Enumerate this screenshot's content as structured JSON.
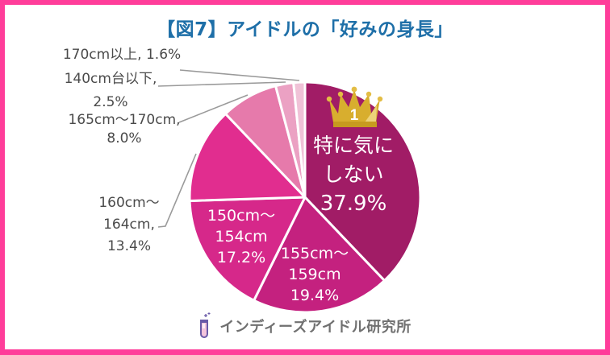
{
  "theme": {
    "frame": "#ff3d9a",
    "title": "#1e6fa8",
    "label_text": "#4a4a4a",
    "inside_label_text": "#ffffff",
    "leader_line": "#9a9a9a",
    "brand_text": "#707070",
    "crown_gold": "#d8ae2e"
  },
  "title": "【図7】アイドルの「好みの身長」",
  "badge": {
    "rank": "1",
    "icon": "crown-icon"
  },
  "footer": {
    "brand": "インディーズアイドル研究所",
    "icon": "test-tube-icon"
  },
  "chart_data": {
    "type": "pie",
    "title": "【図7】アイドルの「好みの身長」",
    "categories": [
      "特に気にしない",
      "155cm～159cm",
      "150cm～154cm",
      "160cm～164cm",
      "165cm～170cm",
      "140cm台以下",
      "170cm以上"
    ],
    "values": [
      37.9,
      19.4,
      17.2,
      13.4,
      8.0,
      2.5,
      1.6
    ],
    "unit": "%",
    "colors": [
      "#a11c66",
      "#c4217f",
      "#d6288a",
      "#e12d8f",
      "#e67aab",
      "#eba1c3",
      "#f0c2d7"
    ],
    "start_angle": "12 o'clock",
    "direction": "clockwise",
    "legend": "none (direct labels)",
    "labels": [
      {
        "lines": [
          "特に気に",
          "しない",
          "37.9%"
        ],
        "position": "inside"
      },
      {
        "lines": [
          "155cm～",
          "159cm",
          "19.4%"
        ],
        "position": "inside"
      },
      {
        "lines": [
          "150cm～",
          "154cm",
          "17.2%"
        ],
        "position": "inside"
      },
      {
        "lines": [
          "160cm～",
          "164cm,",
          "13.4%"
        ],
        "position": "outside"
      },
      {
        "lines": [
          "165cm～170cm,",
          "8.0%"
        ],
        "position": "outside"
      },
      {
        "lines": [
          "140cm台以下,",
          "2.5%"
        ],
        "position": "outside"
      },
      {
        "lines": [
          "170cm以上, 1.6%"
        ],
        "position": "outside"
      }
    ],
    "highlight": {
      "category": "特に気にしない",
      "rank": "1",
      "marker": "crown"
    }
  }
}
